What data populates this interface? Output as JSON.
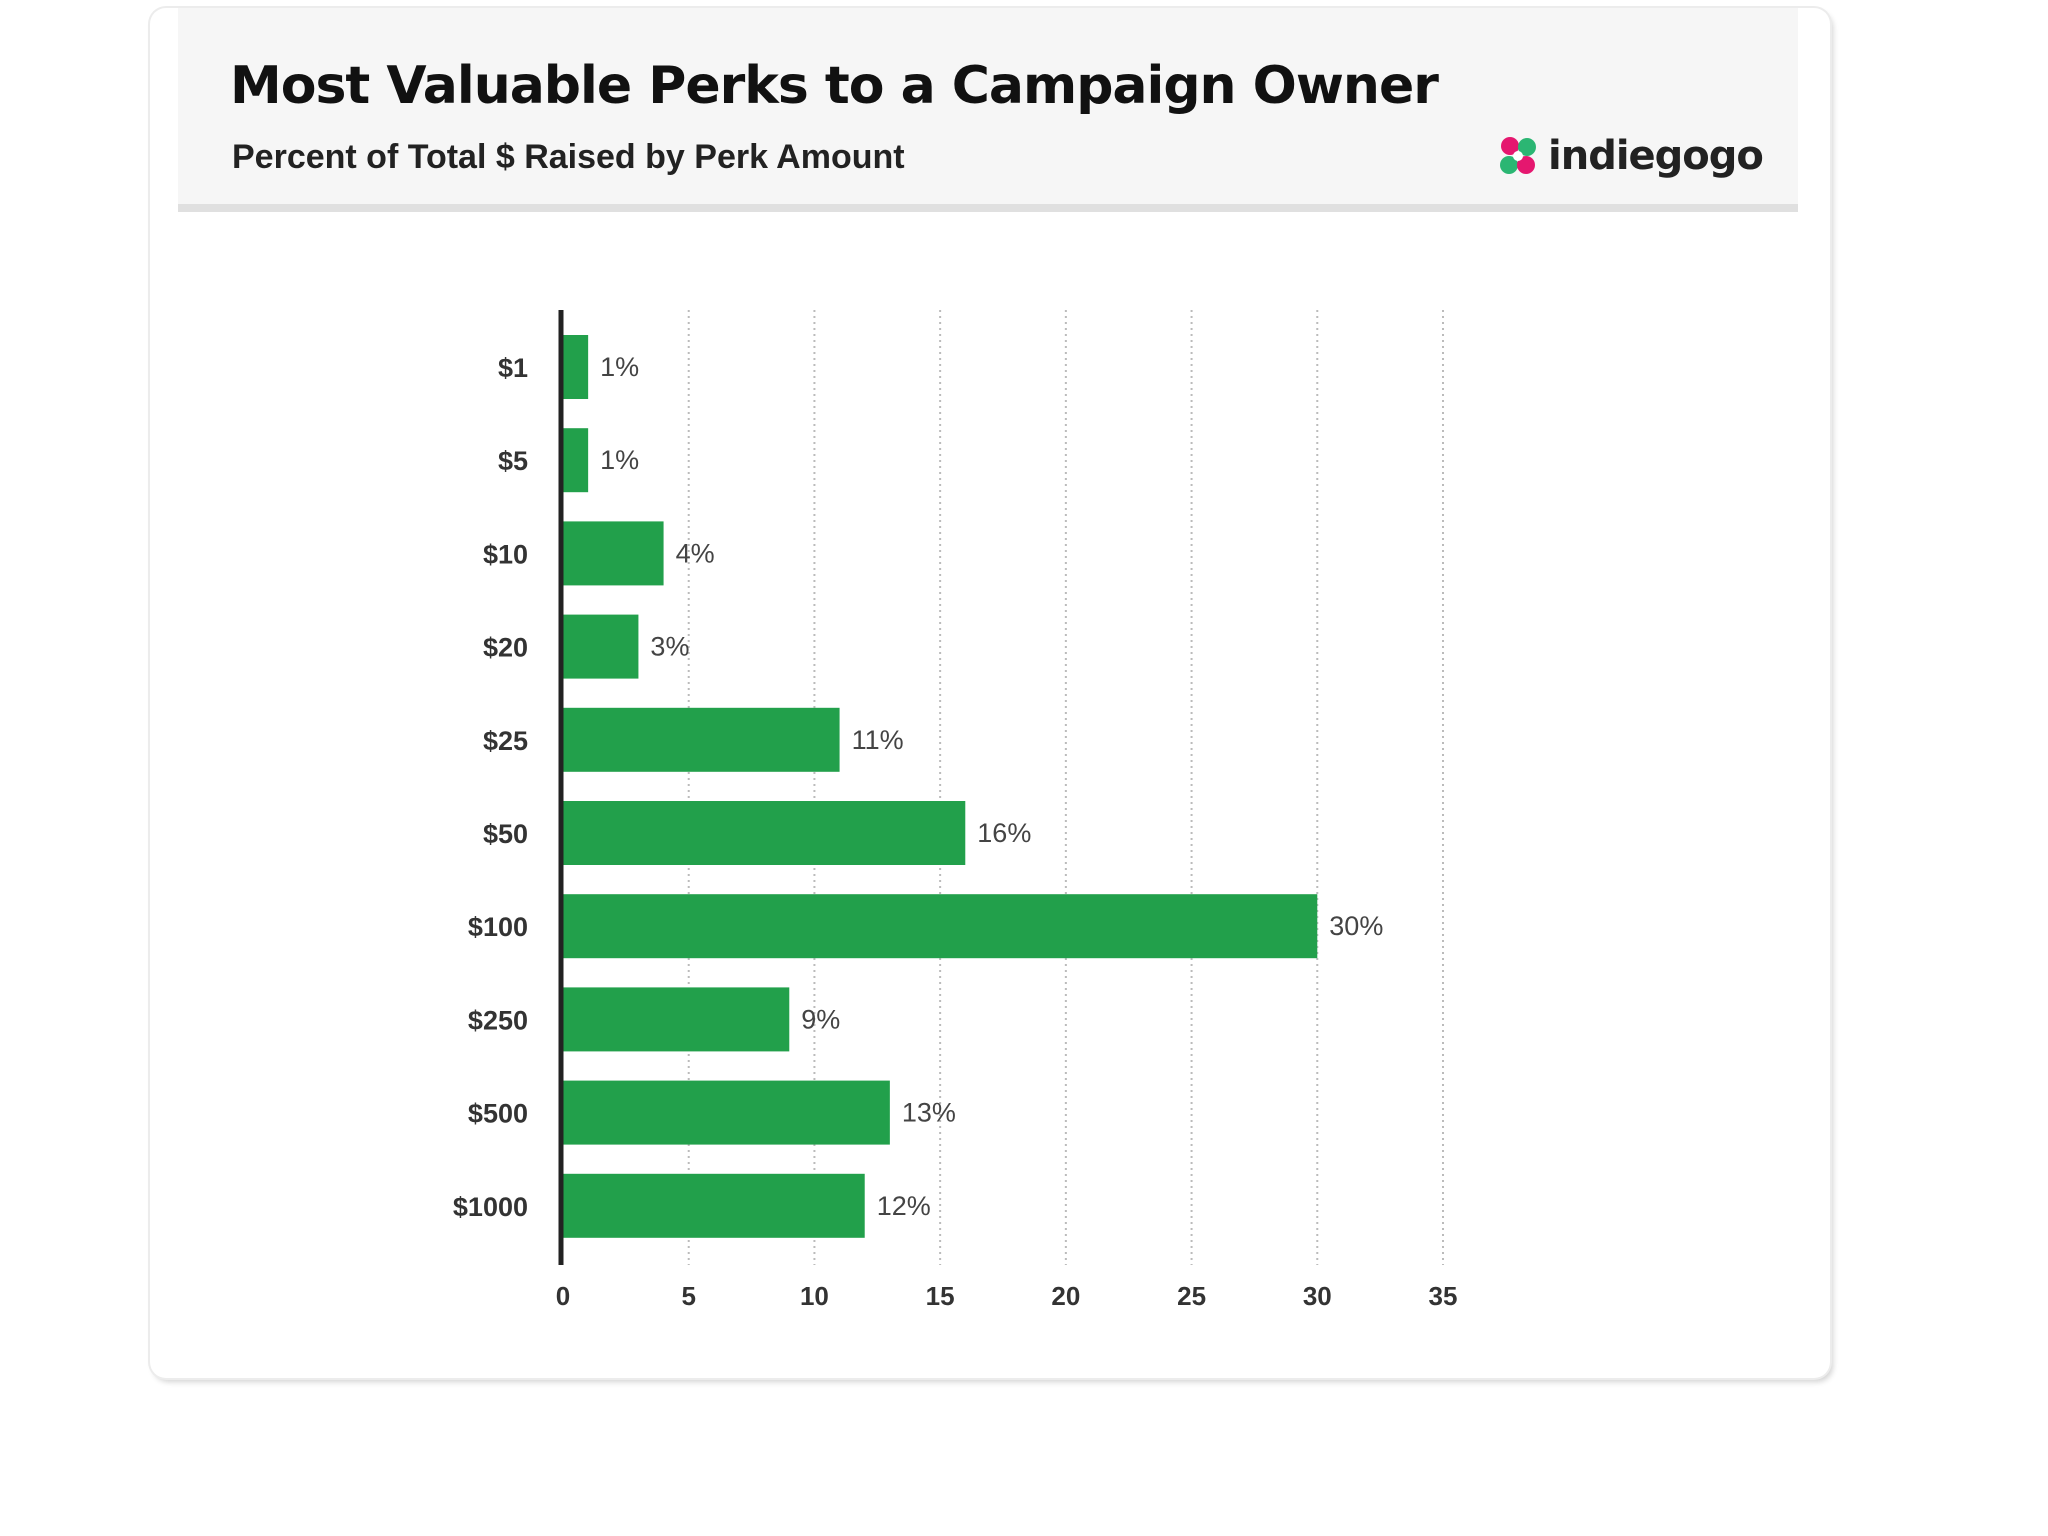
{
  "header": {
    "title": "Most Valuable Perks to a Campaign Owner",
    "subtitle": "Percent of Total $ Raised by Perk Amount",
    "logo_text": "indiegogo",
    "logo_icon": "indiegogo-flower-logo"
  },
  "colors": {
    "bar": "#22a04b",
    "axis": "#222222",
    "grid": "#bbbbbb",
    "logo_pink": "#e5176f",
    "logo_green": "#2bb673"
  },
  "chart_data": {
    "type": "bar",
    "orientation": "horizontal",
    "title": "Most Valuable Perks to a Campaign Owner",
    "subtitle": "Percent of Total $ Raised by Perk Amount",
    "categories": [
      "$1",
      "$5",
      "$10",
      "$20",
      "$25",
      "$50",
      "$100",
      "$250",
      "$500",
      "$1000"
    ],
    "values": [
      1,
      1,
      4,
      3,
      11,
      16,
      30,
      9,
      13,
      12
    ],
    "data_labels": [
      "1%",
      "1%",
      "4%",
      "3%",
      "11%",
      "16%",
      "30%",
      "9%",
      "13%",
      "12%"
    ],
    "xticks": [
      "0",
      "5",
      "10",
      "15",
      "20",
      "25",
      "30",
      "35"
    ],
    "xlim": [
      0,
      35
    ],
    "xlabel": "",
    "ylabel": "",
    "grid": true,
    "grid_style": "dotted vertical"
  }
}
